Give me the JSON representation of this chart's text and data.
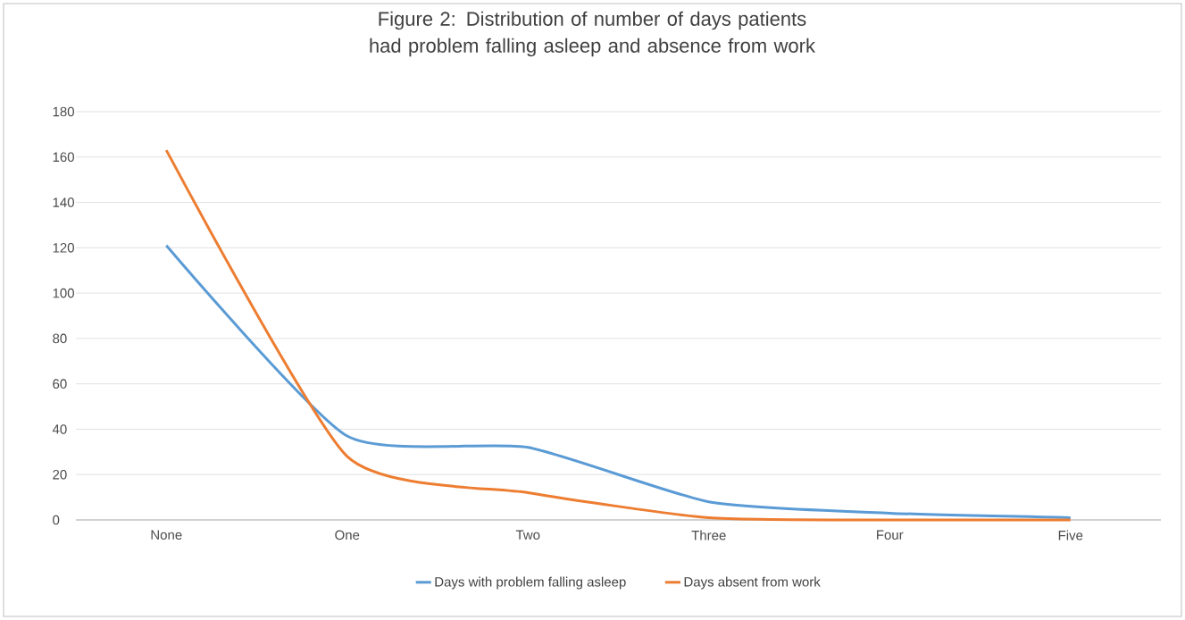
{
  "chart_data": {
    "type": "line",
    "title": "Figure 2: Distribution of number  of days patients had problem falling asleep and absence from work",
    "categories": [
      "None",
      "One",
      "Two",
      "Three",
      "Four",
      "Five"
    ],
    "series": [
      {
        "name": "Days with problem falling asleep",
        "color": "#5b9bd5",
        "values": [
          121,
          37,
          32,
          8,
          3,
          1
        ]
      },
      {
        "name": "Days absent from work",
        "color": "#ed7d31",
        "values": [
          163,
          28,
          12,
          1,
          0,
          0
        ]
      }
    ],
    "ylim": [
      0,
      180
    ],
    "yticks": [
      0,
      20,
      40,
      60,
      80,
      100,
      120,
      140,
      160,
      180
    ],
    "grid": "y",
    "legend": "bottom",
    "marker": "none",
    "line_style": "solid"
  }
}
